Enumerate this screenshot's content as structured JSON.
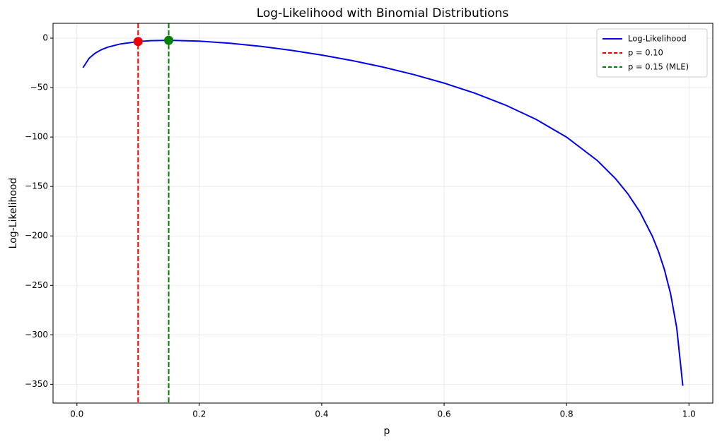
{
  "chart_data": {
    "type": "line",
    "title": "Log-Likelihood with Binomial Distributions",
    "x_label": "p",
    "y_label": "Log-Likelihood",
    "xlim": [
      -0.039,
      1.039
    ],
    "ylim": [
      -369,
      15
    ],
    "xticks": [
      {
        "value": 0,
        "label": "0.0"
      },
      {
        "value": 0.2,
        "label": "0.2"
      },
      {
        "value": 0.4,
        "label": "0.4"
      },
      {
        "value": 0.6,
        "label": "0.6"
      },
      {
        "value": 0.8,
        "label": "0.8"
      },
      {
        "value": 1,
        "label": "1.0"
      }
    ],
    "yticks": [
      {
        "value": -350,
        "label": "−350"
      },
      {
        "value": -300,
        "label": "−300"
      },
      {
        "value": -250,
        "label": "−250"
      },
      {
        "value": -200,
        "label": "−200"
      },
      {
        "value": -150,
        "label": "−150"
      },
      {
        "value": -100,
        "label": "−100"
      },
      {
        "value": -50,
        "label": "−50"
      },
      0
    ],
    "grid": true,
    "legend": "upper right",
    "x": [
      0.01,
      0.02,
      0.03,
      0.04,
      0.05,
      0.07,
      0.1,
      0.12,
      0.15,
      0.2,
      0.25,
      0.3,
      0.35,
      0.4,
      0.45,
      0.5,
      0.55,
      0.6,
      0.65,
      0.7,
      0.75,
      0.8,
      0.85,
      0.88,
      0.9,
      0.92,
      0.94,
      0.95,
      0.96,
      0.97,
      0.98,
      0.99
    ],
    "series": [
      {
        "name": "Log-Likelihood",
        "color": "#0000ee",
        "values": [
          -29.87,
          -20.34,
          -15.13,
          -11.69,
          -9.24,
          -6.0,
          -3.44,
          -2.61,
          -2.21,
          -3.05,
          -5.18,
          -8.32,
          -12.31,
          -17.1,
          -22.74,
          -29.26,
          -36.78,
          -45.48,
          -55.63,
          -67.63,
          -82.09,
          -100.09,
          -123.63,
          -142.08,
          -157.24,
          -175.88,
          -200.01,
          -215.35,
          -234.15,
          -258.46,
          -292.76,
          -351.5
        ]
      }
    ],
    "vlines": [
      {
        "name": "p = 0.10",
        "color": "#ee0000",
        "x": 0.1,
        "y": -3.44
      },
      {
        "name": "p = 0.15 (MLE)",
        "color": "#008000",
        "x": 0.15,
        "y": -2.21
      }
    ]
  }
}
